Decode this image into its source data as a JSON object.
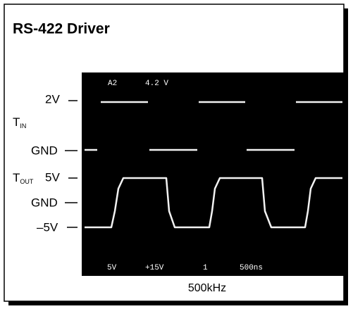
{
  "title": "RS-422 Driver",
  "labels": {
    "in_high": "2V",
    "in_name": {
      "main": "T",
      "sub": "IN"
    },
    "in_low": "GND",
    "out_name": {
      "main": "T",
      "sub": "OUT"
    },
    "out_high": "5V",
    "out_mid": "GND",
    "out_low": "–5V"
  },
  "scope_top": [
    "A2",
    "4.2 V"
  ],
  "scope_bottom": [
    "5V",
    "+15V",
    "1",
    "500ns"
  ],
  "caption": "500kHz"
}
